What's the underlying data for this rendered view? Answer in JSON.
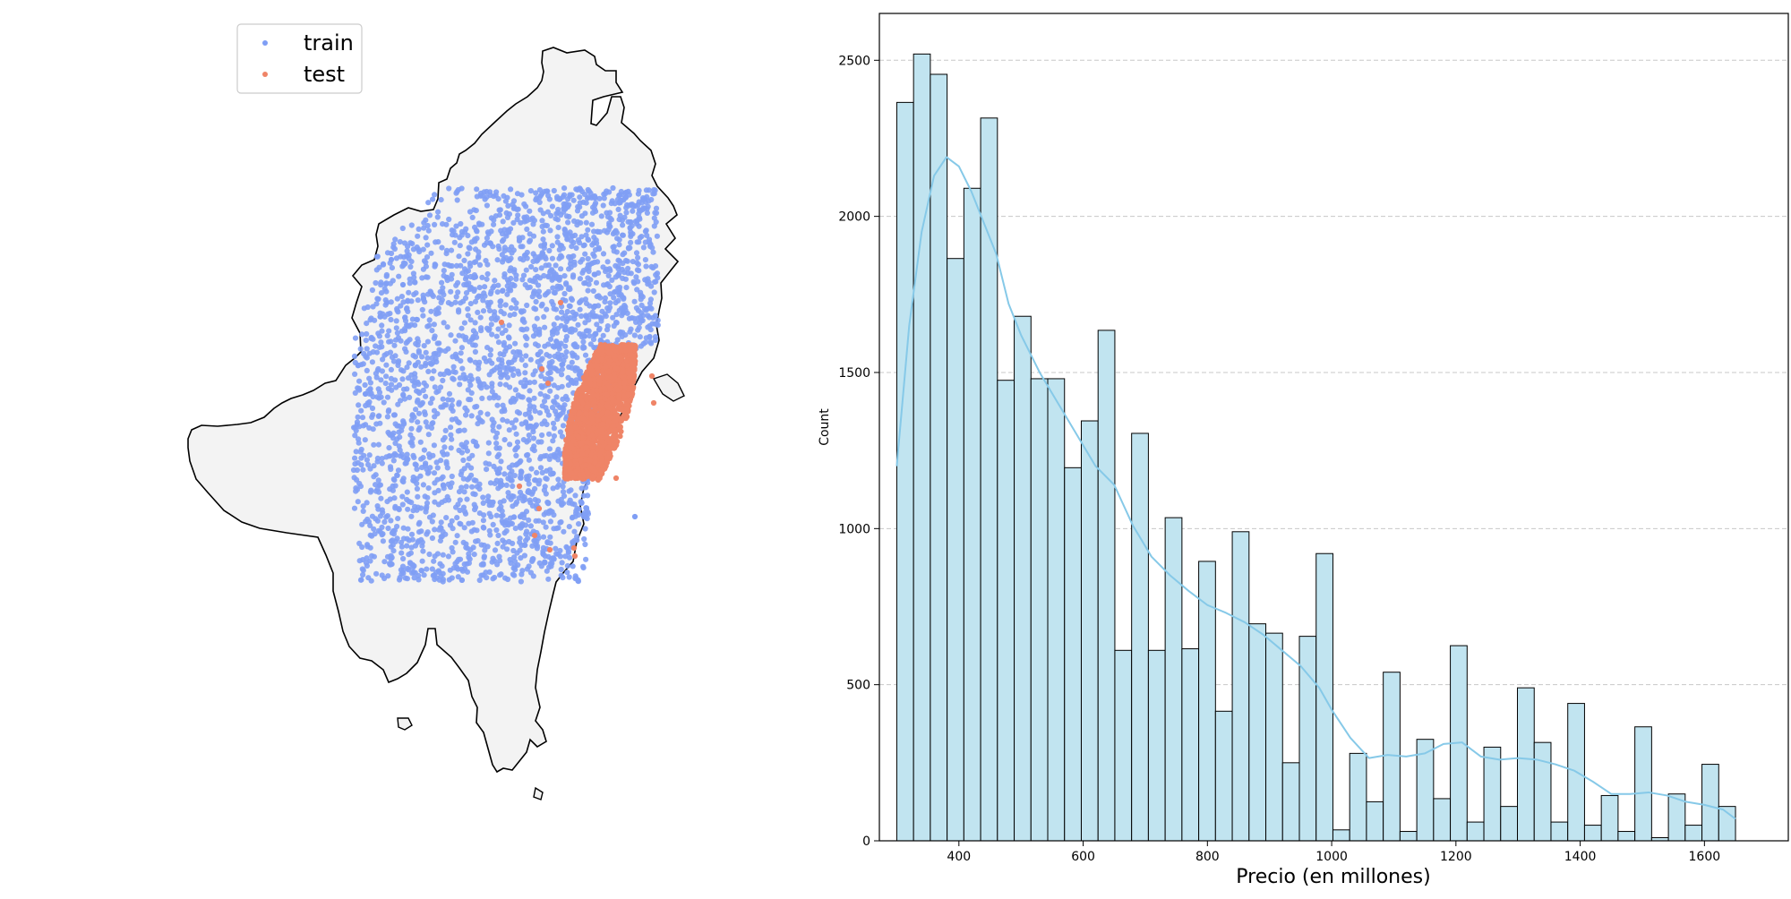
{
  "chart_data": [
    {
      "type": "scatter",
      "description_kind": "map",
      "legend": {
        "placement": "top-left",
        "entries": [
          {
            "name": "train",
            "color": "#7f9ef5"
          },
          {
            "name": "test",
            "color": "#ef8467"
          }
        ]
      },
      "series": [
        {
          "name": "train",
          "color": "#7f9ef5"
        },
        {
          "name": "test",
          "color": "#ef8467"
        }
      ],
      "map_fill": "#f3f3f3",
      "map_stroke": "#000000"
    },
    {
      "type": "bar",
      "subtype": "histogram_with_kde",
      "xlabel": "Precio (en millones)",
      "ylabel": "Count",
      "xlim": [
        272,
        1735
      ],
      "ylim": [
        0,
        2650
      ],
      "grid": "y-dashed",
      "bar_color": "#c1e4f0",
      "bar_edge_color": "#000000",
      "kde_color": "#86c9e8",
      "bin_start": 300,
      "bin_width": 27,
      "counts": [
        2365,
        2520,
        2455,
        1865,
        2090,
        2315,
        1475,
        1680,
        1480,
        1480,
        1195,
        1345,
        1635,
        610,
        1305,
        610,
        1035,
        615,
        895,
        415,
        990,
        695,
        665,
        250,
        655,
        920,
        35,
        280,
        125,
        540,
        30,
        325,
        135,
        625,
        60,
        300,
        110,
        490,
        315,
        60,
        440,
        50,
        145,
        30,
        365,
        10,
        150,
        50,
        245,
        110
      ],
      "kde": {
        "x": [
          300,
          320,
          340,
          360,
          380,
          400,
          420,
          440,
          460,
          480,
          500,
          530,
          560,
          590,
          620,
          650,
          680,
          710,
          740,
          770,
          800,
          830,
          860,
          890,
          920,
          950,
          980,
          1000,
          1030,
          1060,
          1090,
          1120,
          1150,
          1180,
          1210,
          1240,
          1270,
          1300,
          1330,
          1360,
          1390,
          1420,
          1450,
          1480,
          1510,
          1540,
          1570,
          1600,
          1630,
          1650
        ],
        "y": [
          1200,
          1650,
          1950,
          2130,
          2190,
          2160,
          2080,
          1980,
          1880,
          1720,
          1620,
          1500,
          1400,
          1300,
          1200,
          1140,
          1010,
          910,
          850,
          800,
          755,
          730,
          700,
          660,
          610,
          560,
          490,
          420,
          330,
          265,
          275,
          270,
          280,
          310,
          315,
          270,
          260,
          265,
          260,
          245,
          225,
          190,
          150,
          150,
          155,
          145,
          125,
          115,
          100,
          70
        ]
      },
      "x_ticks": [
        "400",
        "600",
        "800",
        "1000",
        "1200",
        "1400",
        "1600"
      ],
      "y_ticks": [
        "0",
        "500",
        "1000",
        "1500",
        "2000",
        "2500"
      ]
    }
  ]
}
